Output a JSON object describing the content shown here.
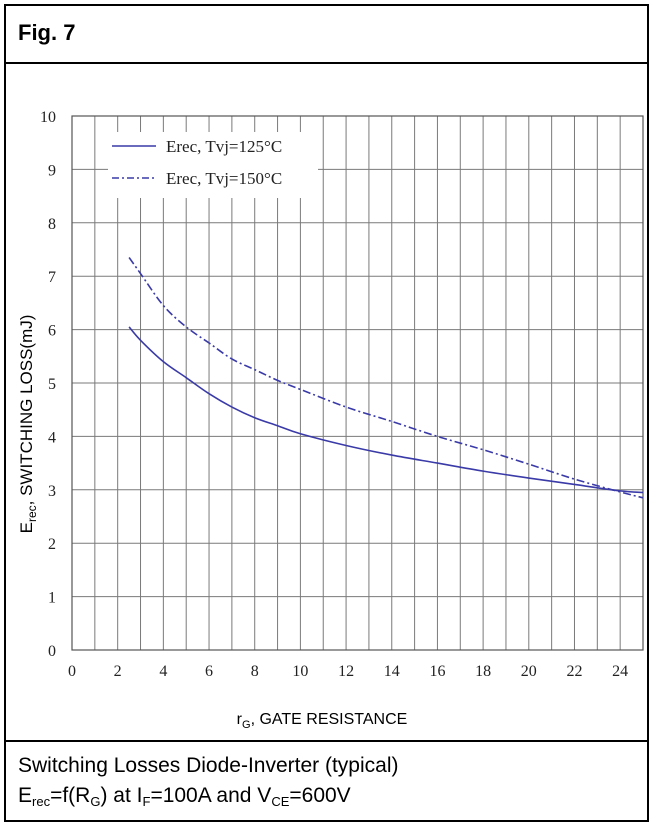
{
  "figure_label": "Fig. 7",
  "caption_line1": "Switching Losses Diode-Inverter (typical)",
  "caption_line2": {
    "e": "E",
    "e_sub": "rec",
    "mid": "=f(R",
    "r_sub": "G",
    "mid2": ") at I",
    "i_sub": "F",
    "mid3": "=100A and V",
    "v_sub": "CE",
    "end": "=600V"
  },
  "chart_data": {
    "type": "line",
    "xlabel": {
      "main": "r",
      "sub": "G",
      "rest": ", GATE RESISTANCE"
    },
    "ylabel": {
      "main": "E",
      "sub": "rec",
      "rest": ", SWITCHING LOSS(mJ)"
    },
    "xlim": [
      0,
      25
    ],
    "ylim": [
      0,
      10
    ],
    "xticks": [
      0,
      2,
      4,
      6,
      8,
      10,
      12,
      14,
      16,
      18,
      20,
      22,
      24
    ],
    "yticks": [
      0,
      1,
      2,
      3,
      4,
      5,
      6,
      7,
      8,
      9,
      10
    ],
    "grid": true,
    "legend_position": "top-left",
    "series": [
      {
        "name": "Erec, Tvj=125°C",
        "color": "#3a3aa8",
        "style": "solid",
        "x": [
          2.5,
          3,
          4,
          5,
          6,
          7,
          8,
          9,
          10,
          12,
          14,
          16,
          18,
          20,
          22,
          24,
          25
        ],
        "y": [
          6.05,
          5.8,
          5.4,
          5.1,
          4.8,
          4.55,
          4.35,
          4.2,
          4.05,
          3.83,
          3.65,
          3.5,
          3.35,
          3.22,
          3.1,
          2.98,
          2.95
        ]
      },
      {
        "name": "Erec, Tvj=150°C",
        "color": "#3a3aa8",
        "style": "dashdot",
        "x": [
          2.5,
          3,
          4,
          5,
          6,
          7,
          8,
          9,
          10,
          12,
          14,
          16,
          18,
          20,
          22,
          24,
          25
        ],
        "y": [
          7.35,
          7.05,
          6.45,
          6.05,
          5.75,
          5.45,
          5.25,
          5.05,
          4.88,
          4.55,
          4.28,
          4.0,
          3.75,
          3.48,
          3.2,
          2.96,
          2.85
        ]
      }
    ]
  }
}
